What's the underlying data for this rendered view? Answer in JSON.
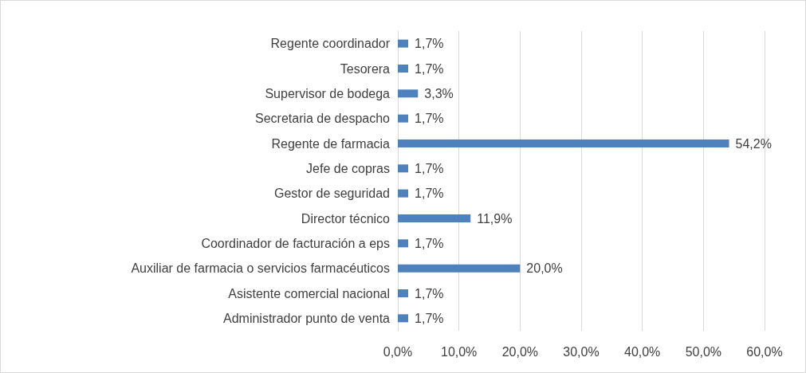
{
  "chart_data": {
    "type": "bar",
    "orientation": "horizontal",
    "categories": [
      "Regente coordinador",
      "Tesorera",
      "Supervisor de bodega",
      "Secretaria de despacho",
      "Regente de farmacia",
      "Jefe de copras",
      "Gestor de seguridad",
      "Director técnico",
      "Coordinador de facturación a eps",
      "Auxiliar de farmacia o servicios farmacéuticos",
      "Asistente comercial nacional",
      "Administrador punto de venta"
    ],
    "values": [
      1.7,
      1.7,
      3.3,
      1.7,
      54.2,
      1.7,
      1.7,
      11.9,
      1.7,
      20.0,
      1.7,
      1.7
    ],
    "value_labels": [
      "1,7%",
      "1,7%",
      "3,3%",
      "1,7%",
      "54,2%",
      "1,7%",
      "1,7%",
      "11,9%",
      "1,7%",
      "20,0%",
      "1,7%",
      "1,7%"
    ],
    "color": "#4f81bd",
    "xlim": [
      0,
      60
    ],
    "xticks": [
      {
        "value": 0,
        "label": "0,0%"
      },
      {
        "value": 10,
        "label": "10,0%"
      },
      {
        "value": 20,
        "label": "20,0%"
      },
      {
        "value": 30,
        "label": "30,0%"
      },
      {
        "value": 40,
        "label": "40,0%"
      },
      {
        "value": 50,
        "label": "50,0%"
      },
      {
        "value": 60,
        "label": "60,0%"
      }
    ],
    "grid": "x"
  }
}
